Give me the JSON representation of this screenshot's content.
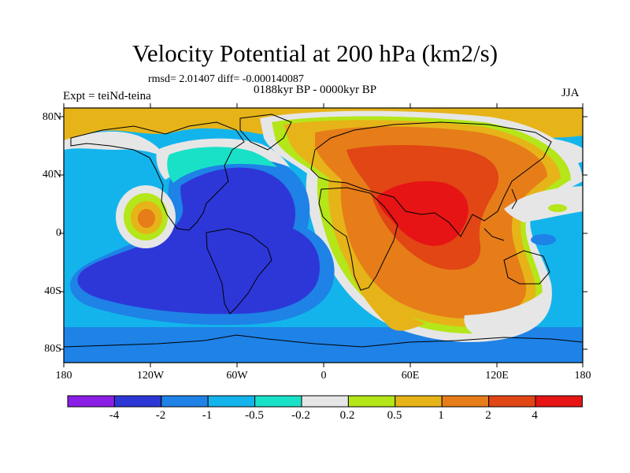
{
  "title": "Velocity Potential at 200 hPa (km2/s)",
  "stats_line": "rmsd= 2.01407 diff= -0.000140087",
  "period": "0188kyr BP - 0000kyr BP",
  "experiment": "Expt = teiNd-teina",
  "season": "JJA",
  "lat_labels": [
    "80N",
    "40N",
    "0",
    "40S",
    "80S"
  ],
  "lon_labels": [
    "180",
    "120W",
    "60W",
    "0",
    "60E",
    "120E",
    "180"
  ],
  "colorbar": {
    "labels": [
      "-4",
      "-2",
      "-1",
      "-0.5",
      "-0.2",
      "0.2",
      "0.5",
      "1",
      "2",
      "4"
    ],
    "colors": [
      "#8a1ee6",
      "#2d37d8",
      "#1e82e6",
      "#13b4ec",
      "#19e1c8",
      "#e6e6e6",
      "#b4e619",
      "#e6b419",
      "#e67d19",
      "#e14614",
      "#e61414"
    ]
  },
  "map_colors": {
    "ocean_bg": "#13b4ec",
    "coast": "#000000"
  }
}
